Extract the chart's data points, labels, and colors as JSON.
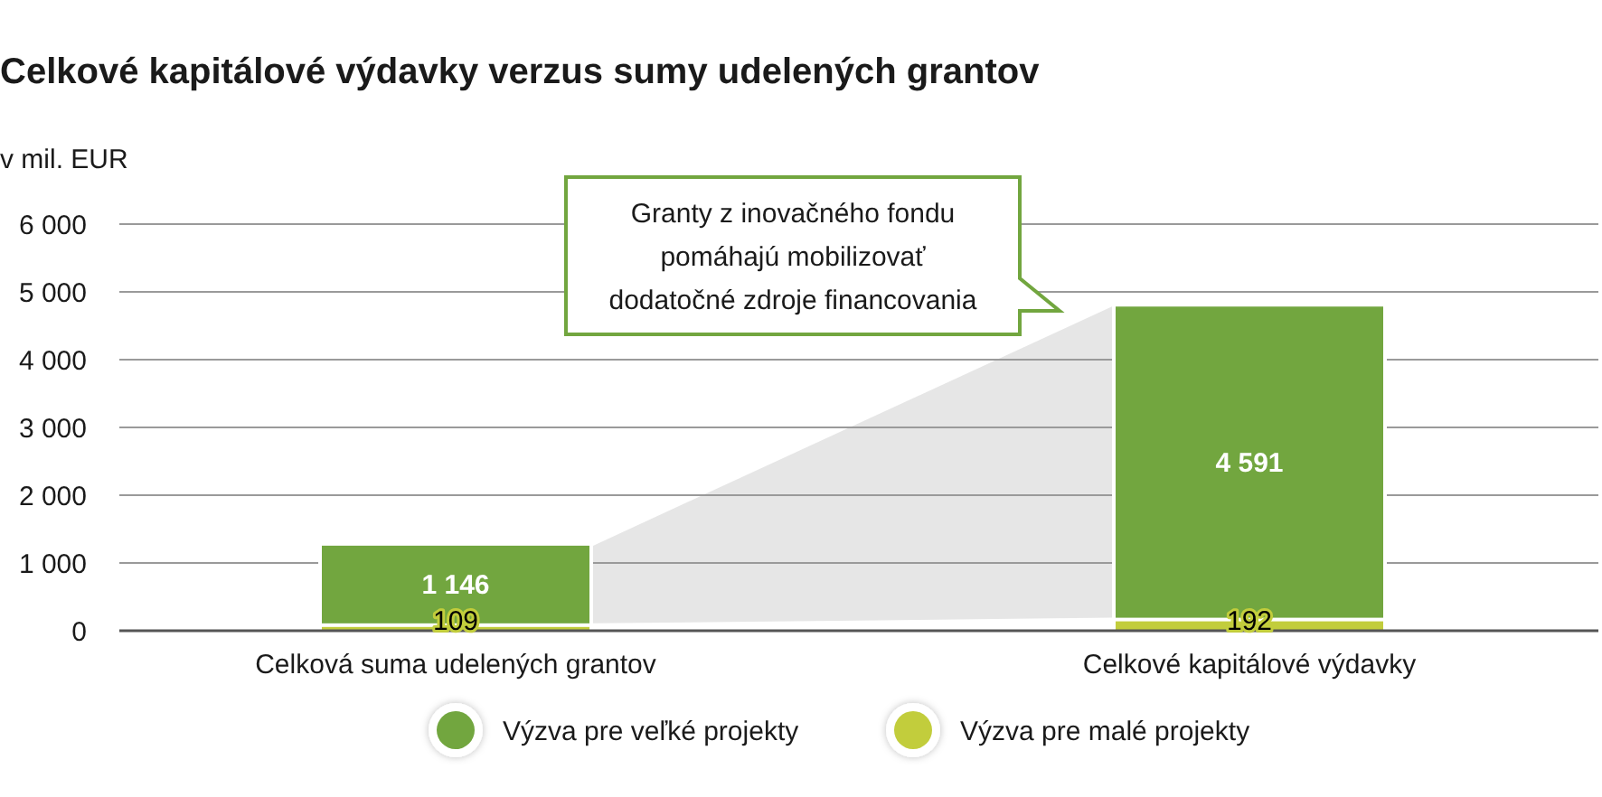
{
  "chart_data": {
    "type": "bar",
    "title": "Celkové kapitálové výdavky verzus sumy udelených grantov",
    "ylabel": "v mil. EUR",
    "categories": [
      "Celková suma udelených grantov",
      "Celkové kapitálové výdavky"
    ],
    "series": [
      {
        "name": "Výzva pre malé projekty",
        "color": "#c2cd3c",
        "values": [
          109,
          192
        ],
        "value_labels": [
          "109",
          "192"
        ]
      },
      {
        "name": "Výzva pre veľké projekty",
        "color": "#72a63f",
        "values": [
          1146,
          4591
        ],
        "value_labels": [
          "1 146",
          "4 591"
        ]
      }
    ],
    "stacked": true,
    "ylim": [
      0,
      6000
    ],
    "yticks": [
      {
        "value": 0,
        "label": "0"
      },
      {
        "value": 1000,
        "label": "1 000"
      },
      {
        "value": 2000,
        "label": "2 000"
      },
      {
        "value": 3000,
        "label": "3 000"
      },
      {
        "value": 4000,
        "label": "4 000"
      },
      {
        "value": 5000,
        "label": "5 000"
      },
      {
        "value": 6000,
        "label": "6 000"
      }
    ],
    "grid": "y",
    "legend": "bottom",
    "annotations": [
      "Granty z inovačného fondu\npomáhajú mobilizovať\ndodatočné zdroje financovania"
    ]
  }
}
